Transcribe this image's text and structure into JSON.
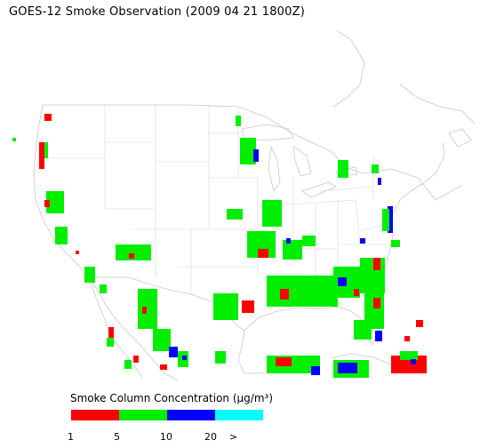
{
  "title": "GOES-12 Smoke Observation (2009 04 21  1800Z)",
  "legend": {
    "title_prefix": "Smoke Column Concentration (",
    "title_unit": "μg/m³",
    "title_suffix": ")",
    "bins": [
      {
        "color": "#ff0000",
        "label": "1"
      },
      {
        "color": "#00ee00",
        "label": "5"
      },
      {
        "color": "#0000ff",
        "label": "10"
      },
      {
        "color": "#00ffff",
        "label": "20"
      }
    ],
    "overflow_label": ">"
  }
}
